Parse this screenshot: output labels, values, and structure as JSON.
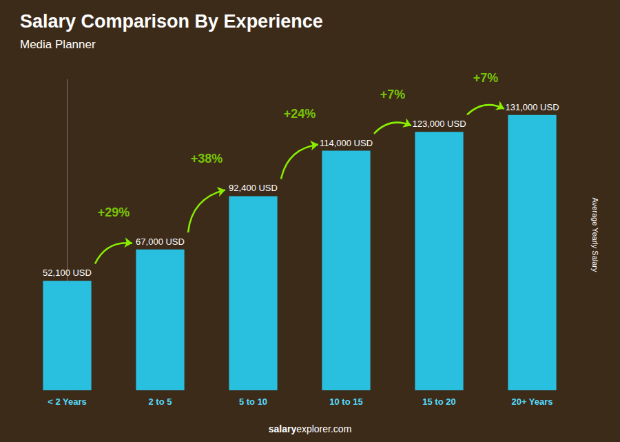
{
  "chart_data": {
    "type": "bar",
    "title": "Salary Comparison By Experience",
    "subtitle": "Media Planner",
    "ylabel": "Average Yearly Salary",
    "categories": [
      "< 2 Years",
      "2 to 5",
      "5 to 10",
      "10 to 15",
      "15 to 20",
      "20+ Years"
    ],
    "values": [
      52100,
      67000,
      92400,
      114000,
      123000,
      131000
    ],
    "value_labels": [
      "52,100 USD",
      "67,000 USD",
      "92,400 USD",
      "114,000 USD",
      "123,000 USD",
      "131,000 USD"
    ],
    "data_labels": true,
    "color": "#29BFDF",
    "annotations": [
      "+29%",
      "+38%",
      "+24%",
      "+7%",
      "+7%"
    ],
    "footer": [
      "salary",
      "explorer.com"
    ],
    "ylim": [
      0,
      148000
    ],
    "tick_labels": "x",
    "grid": false
  }
}
